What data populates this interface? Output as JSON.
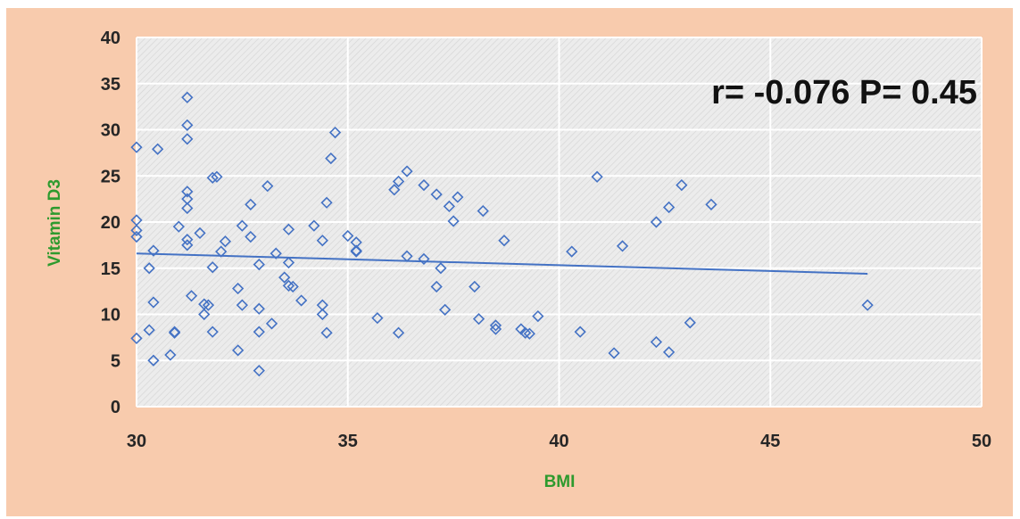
{
  "chart_data": {
    "type": "scatter",
    "title": "",
    "xlabel": "BMI",
    "ylabel": "Vitamin D3",
    "xlim": [
      30,
      50
    ],
    "ylim": [
      0,
      40
    ],
    "x_ticks": [
      "30",
      "35",
      "40",
      "45",
      "50"
    ],
    "y_ticks": [
      "0",
      "5",
      "10",
      "15",
      "20",
      "25",
      "30",
      "35",
      "40"
    ],
    "grid": true,
    "annotation": "r= -0.076 P= 0.45",
    "colors": {
      "background": "#f8cbad",
      "plot_area": "#ebebeb",
      "marker": "#4472c4",
      "trendline": "#4472c4",
      "axis_title": "#2e9a2e"
    },
    "trendline": {
      "type": "linear",
      "x": [
        30,
        47.3
      ],
      "y": [
        16.6,
        14.4
      ]
    },
    "points": {
      "x": [
        30.0,
        30.0,
        30.0,
        30.0,
        30.0,
        30.3,
        30.3,
        30.4,
        30.4,
        30.4,
        30.5,
        30.8,
        30.9,
        30.9,
        31.0,
        31.2,
        31.2,
        31.2,
        31.2,
        31.2,
        31.2,
        31.2,
        31.2,
        31.3,
        31.5,
        31.6,
        31.6,
        31.7,
        31.8,
        31.8,
        31.8,
        31.9,
        32.0,
        32.1,
        32.4,
        32.4,
        32.5,
        32.5,
        32.7,
        32.7,
        32.9,
        32.9,
        32.9,
        32.9,
        33.1,
        33.2,
        33.3,
        33.5,
        33.6,
        33.6,
        33.6,
        33.7,
        33.9,
        34.2,
        34.4,
        34.4,
        34.4,
        34.5,
        34.5,
        34.6,
        34.7,
        35.0,
        35.2,
        35.2,
        35.2,
        35.7,
        36.1,
        36.2,
        36.2,
        36.4,
        36.4,
        36.8,
        36.8,
        37.1,
        37.1,
        37.2,
        37.3,
        37.4,
        37.5,
        37.6,
        38.0,
        38.1,
        38.2,
        38.5,
        38.5,
        38.7,
        39.1,
        39.2,
        39.3,
        39.5,
        40.3,
        40.5,
        40.9,
        41.3,
        41.5,
        42.3,
        42.3,
        42.6,
        42.6,
        42.9,
        43.1,
        43.6,
        47.3
      ],
      "y": [
        28.1,
        20.2,
        19.1,
        18.4,
        7.4,
        15.0,
        8.3,
        16.9,
        11.3,
        5.0,
        27.9,
        5.6,
        8.0,
        8.1,
        19.5,
        33.5,
        30.5,
        29.0,
        23.3,
        22.5,
        21.5,
        18.1,
        17.5,
        12.0,
        18.8,
        11.1,
        10.0,
        11.0,
        24.8,
        15.1,
        8.1,
        24.9,
        16.8,
        17.9,
        12.8,
        6.1,
        19.6,
        11.0,
        21.9,
        18.4,
        3.9,
        10.6,
        8.1,
        15.4,
        23.9,
        9.0,
        16.6,
        14.0,
        19.2,
        15.6,
        13.1,
        13.0,
        11.5,
        19.6,
        18.0,
        11.0,
        10.0,
        22.1,
        8.0,
        26.9,
        29.7,
        18.5,
        17.8,
        16.8,
        16.9,
        9.6,
        23.5,
        8.0,
        24.4,
        16.3,
        25.5,
        16.0,
        24.0,
        23.0,
        13.0,
        15.0,
        10.5,
        21.7,
        20.1,
        22.7,
        13.0,
        9.5,
        21.2,
        8.8,
        8.4,
        18.0,
        8.4,
        8.0,
        7.9,
        9.8,
        16.8,
        8.1,
        24.9,
        5.8,
        17.4,
        7.0,
        20.0,
        5.9,
        21.6,
        24.0,
        9.1,
        21.9,
        11.0
      ]
    }
  }
}
